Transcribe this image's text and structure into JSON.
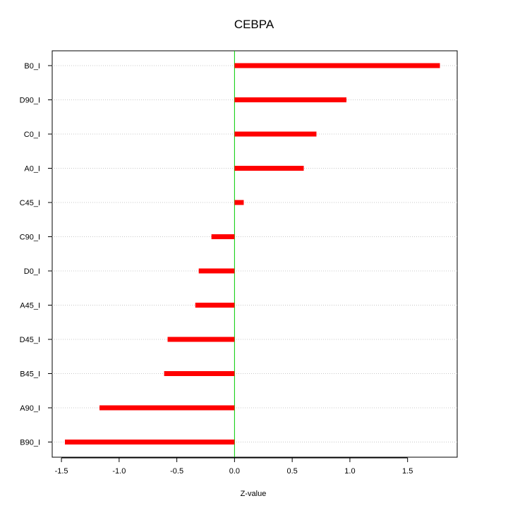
{
  "chart_data": {
    "type": "bar",
    "orientation": "horizontal",
    "title": "CEBPA",
    "xlabel": "Z-value",
    "ylabel": "",
    "xlim": [
      -1.58,
      1.93
    ],
    "x_ticks": [
      -1.5,
      -1.0,
      -0.5,
      0.0,
      0.5,
      1.0,
      1.5
    ],
    "x_tick_labels": [
      "-1.5",
      "-1.0",
      "-0.5",
      "0.0",
      "0.5",
      "1.0",
      "1.5"
    ],
    "categories": [
      "B0_I",
      "D90_I",
      "C0_I",
      "A0_I",
      "C45_I",
      "C90_I",
      "D0_I",
      "A45_I",
      "D45_I",
      "B45_I",
      "A90_I",
      "B90_I"
    ],
    "values": [
      1.78,
      0.97,
      0.71,
      0.6,
      0.08,
      -0.2,
      -0.31,
      -0.34,
      -0.58,
      -0.61,
      -1.17,
      -1.47
    ],
    "grid": "horizontal dotted",
    "reference_line": 0,
    "colors": {
      "bar": "#ff0000",
      "reference_line": "#00cc00",
      "grid": "#c8c8c8",
      "axis": "#000000"
    }
  }
}
